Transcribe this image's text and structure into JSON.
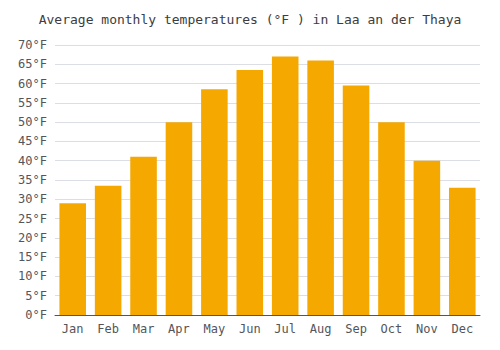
{
  "chart_data": {
    "type": "bar",
    "title": "Average monthly temperatures (°F ) in Laa an der Thaya",
    "categories": [
      "Jan",
      "Feb",
      "Mar",
      "Apr",
      "May",
      "Jun",
      "Jul",
      "Aug",
      "Sep",
      "Oct",
      "Nov",
      "Dec"
    ],
    "values": [
      29.0,
      33.5,
      41.0,
      50.0,
      58.5,
      63.5,
      67.0,
      66.0,
      59.5,
      50.0,
      40.0,
      33.0
    ],
    "color": "#F5A800",
    "ylim": [
      0,
      70
    ],
    "yticks": [
      {
        "value": 0,
        "label": "0°F"
      },
      {
        "value": 5,
        "label": "5°F"
      },
      {
        "value": 10,
        "label": "10°F"
      },
      {
        "value": 15,
        "label": "15°F"
      },
      {
        "value": 20,
        "label": "20°F"
      },
      {
        "value": 25,
        "label": "25°F"
      },
      {
        "value": 30,
        "label": "30°F"
      },
      {
        "value": 35,
        "label": "35°F"
      },
      {
        "value": 40,
        "label": "40°F"
      },
      {
        "value": 45,
        "label": "45°F"
      },
      {
        "value": 50,
        "label": "50°F"
      },
      {
        "value": 55,
        "label": "55°F"
      },
      {
        "value": 60,
        "label": "60°F"
      },
      {
        "value": 65,
        "label": "65°F"
      },
      {
        "value": 70,
        "label": "70°F"
      }
    ],
    "grid": true
  }
}
